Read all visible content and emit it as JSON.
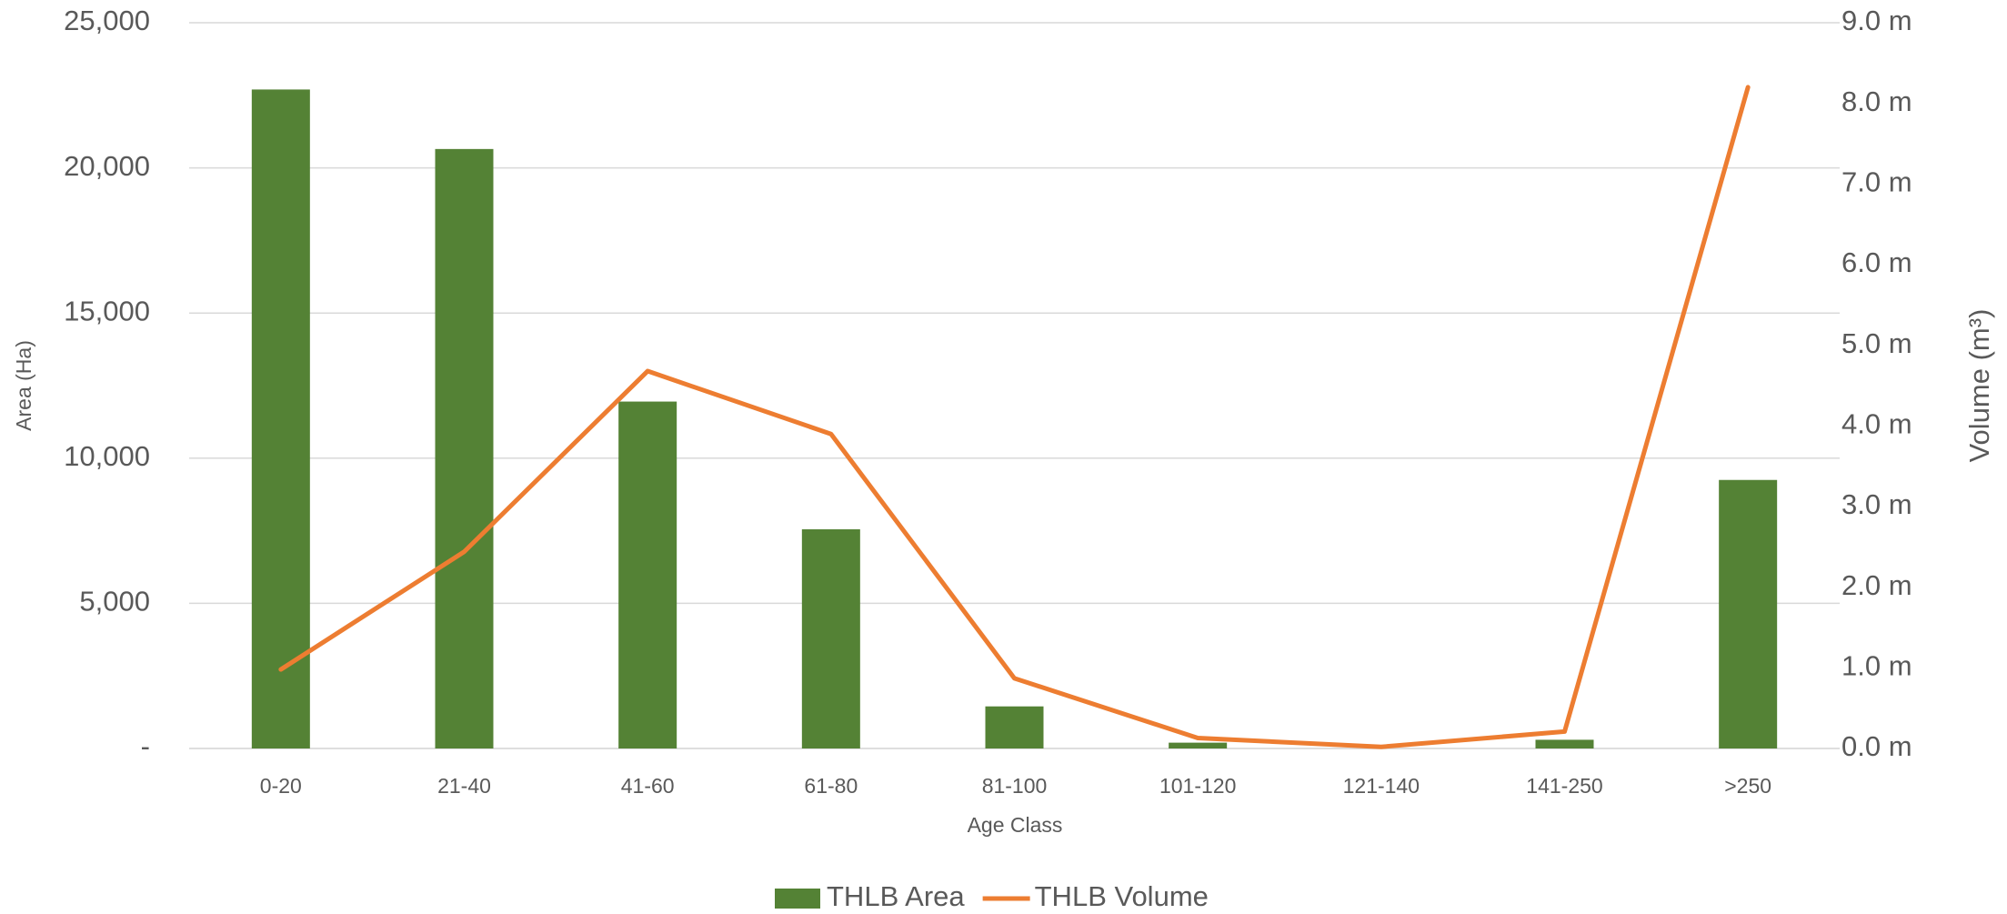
{
  "chart_data": {
    "type": "bar",
    "x_label": "Age Class",
    "y_label": "Area (Ha)",
    "y2_label": "Volume (m³)",
    "categories": [
      "0-20",
      "21-40",
      "41-60",
      "61-80",
      "81-100",
      "101-120",
      "121-140",
      "141-250",
      ">250"
    ],
    "series": [
      {
        "name": "THLB Area",
        "type": "bar",
        "color": "#548235",
        "values": [
          22700,
          20650,
          11950,
          7550,
          1450,
          200,
          0,
          300,
          9250
        ]
      },
      {
        "name": "THLB Volume",
        "type": "line",
        "axis": "y2",
        "color": "#ed7d31",
        "values": [
          0.98,
          2.44,
          4.68,
          3.9,
          0.87,
          0.13,
          0.02,
          0.21,
          8.2
        ]
      }
    ],
    "ylim": [
      0,
      25000
    ],
    "yticks": [
      {
        "value": 0,
        "label": "-"
      },
      {
        "value": 5000,
        "label": "5,000"
      },
      {
        "value": 10000,
        "label": "10,000"
      },
      {
        "value": 15000,
        "label": "15,000"
      },
      {
        "value": 20000,
        "label": "20,000"
      },
      {
        "value": 25000,
        "label": "25,000"
      }
    ],
    "y2lim": [
      0,
      9
    ],
    "y2ticks": [
      {
        "value": 0,
        "label": "0.0 m"
      },
      {
        "value": 1,
        "label": "1.0 m"
      },
      {
        "value": 2,
        "label": "2.0 m"
      },
      {
        "value": 3,
        "label": "3.0 m"
      },
      {
        "value": 4,
        "label": "4.0 m"
      },
      {
        "value": 5,
        "label": "5.0 m"
      },
      {
        "value": 6,
        "label": "6.0 m"
      },
      {
        "value": 7,
        "label": "7.0 m"
      },
      {
        "value": 8,
        "label": "8.0 m"
      },
      {
        "value": 9,
        "label": "9.0 m"
      }
    ],
    "grid": true,
    "legend": "bottom"
  }
}
